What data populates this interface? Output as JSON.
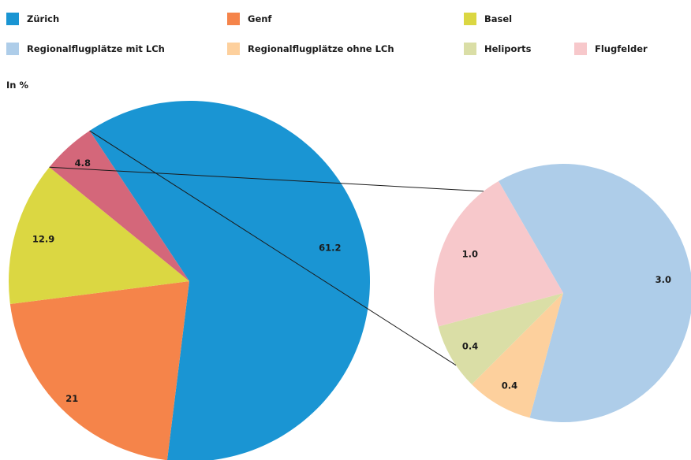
{
  "legend": [
    {
      "label": "Zürich",
      "color": "#1a95d3"
    },
    {
      "label": "Genf",
      "color": "#f5844a"
    },
    {
      "label": "Basel",
      "color": "#dbd742"
    },
    {
      "label": "Regionalflugplätze mit LCh",
      "color": "#aecde9"
    },
    {
      "label": "Regionalflugplätze ohne LCh",
      "color": "#fdd09d"
    },
    {
      "label": "Heliports",
      "color": "#dadea6"
    },
    {
      "label": "Flugfelder",
      "color": "#f7c8cb"
    }
  ],
  "unit_label": "In %",
  "chart_data": [
    {
      "type": "pie",
      "slices": [
        {
          "label": "Zürich",
          "value": 61.2,
          "display": "61.2",
          "color": "#1a95d3"
        },
        {
          "label": "Genf",
          "value": 21,
          "display": "21",
          "color": "#f5844a"
        },
        {
          "label": "Basel",
          "value": 12.9,
          "display": "12.9",
          "color": "#dbd742"
        },
        {
          "label": "",
          "value": 4.8,
          "display": "4.8",
          "color": "#d4677a"
        }
      ]
    },
    {
      "type": "pie",
      "slices": [
        {
          "label": "Regionalflugplätze mit LCh",
          "value": 3.0,
          "display": "3.0",
          "color": "#aecde9"
        },
        {
          "label": "Regionalflugplätze ohne LCh",
          "value": 0.4,
          "display": "0.4",
          "color": "#fdd09d"
        },
        {
          "label": "Heliports",
          "value": 0.4,
          "display": "0.4",
          "color": "#dadea6"
        },
        {
          "label": "Flugfelder",
          "value": 1.0,
          "display": "1.0",
          "color": "#f7c8cb"
        }
      ]
    }
  ]
}
